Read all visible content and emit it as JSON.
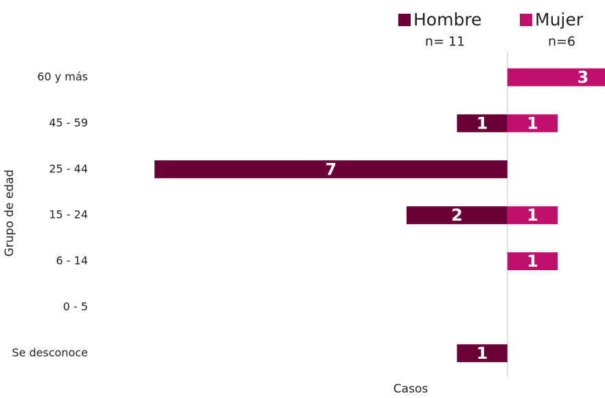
{
  "chart_data": {
    "type": "pyramid",
    "categories": [
      "60 y más",
      "45 - 59",
      "25 - 44",
      "15 - 24",
      "6 - 14",
      "0 - 5",
      "Se desconoce"
    ],
    "series": [
      {
        "name": "Hombre",
        "color": "#6a0035",
        "side": "left",
        "values": [
          0,
          1,
          7,
          2,
          0,
          0,
          1
        ]
      },
      {
        "name": "Mujer",
        "color": "#c0106c",
        "side": "right",
        "values": [
          3,
          1,
          0,
          1,
          1,
          0,
          0
        ]
      }
    ],
    "annotations": [
      "n= 11",
      "n=6"
    ],
    "xlabel": "Casos",
    "ylabel": "Grupo de edad",
    "xlim": [
      -7,
      3
    ]
  }
}
